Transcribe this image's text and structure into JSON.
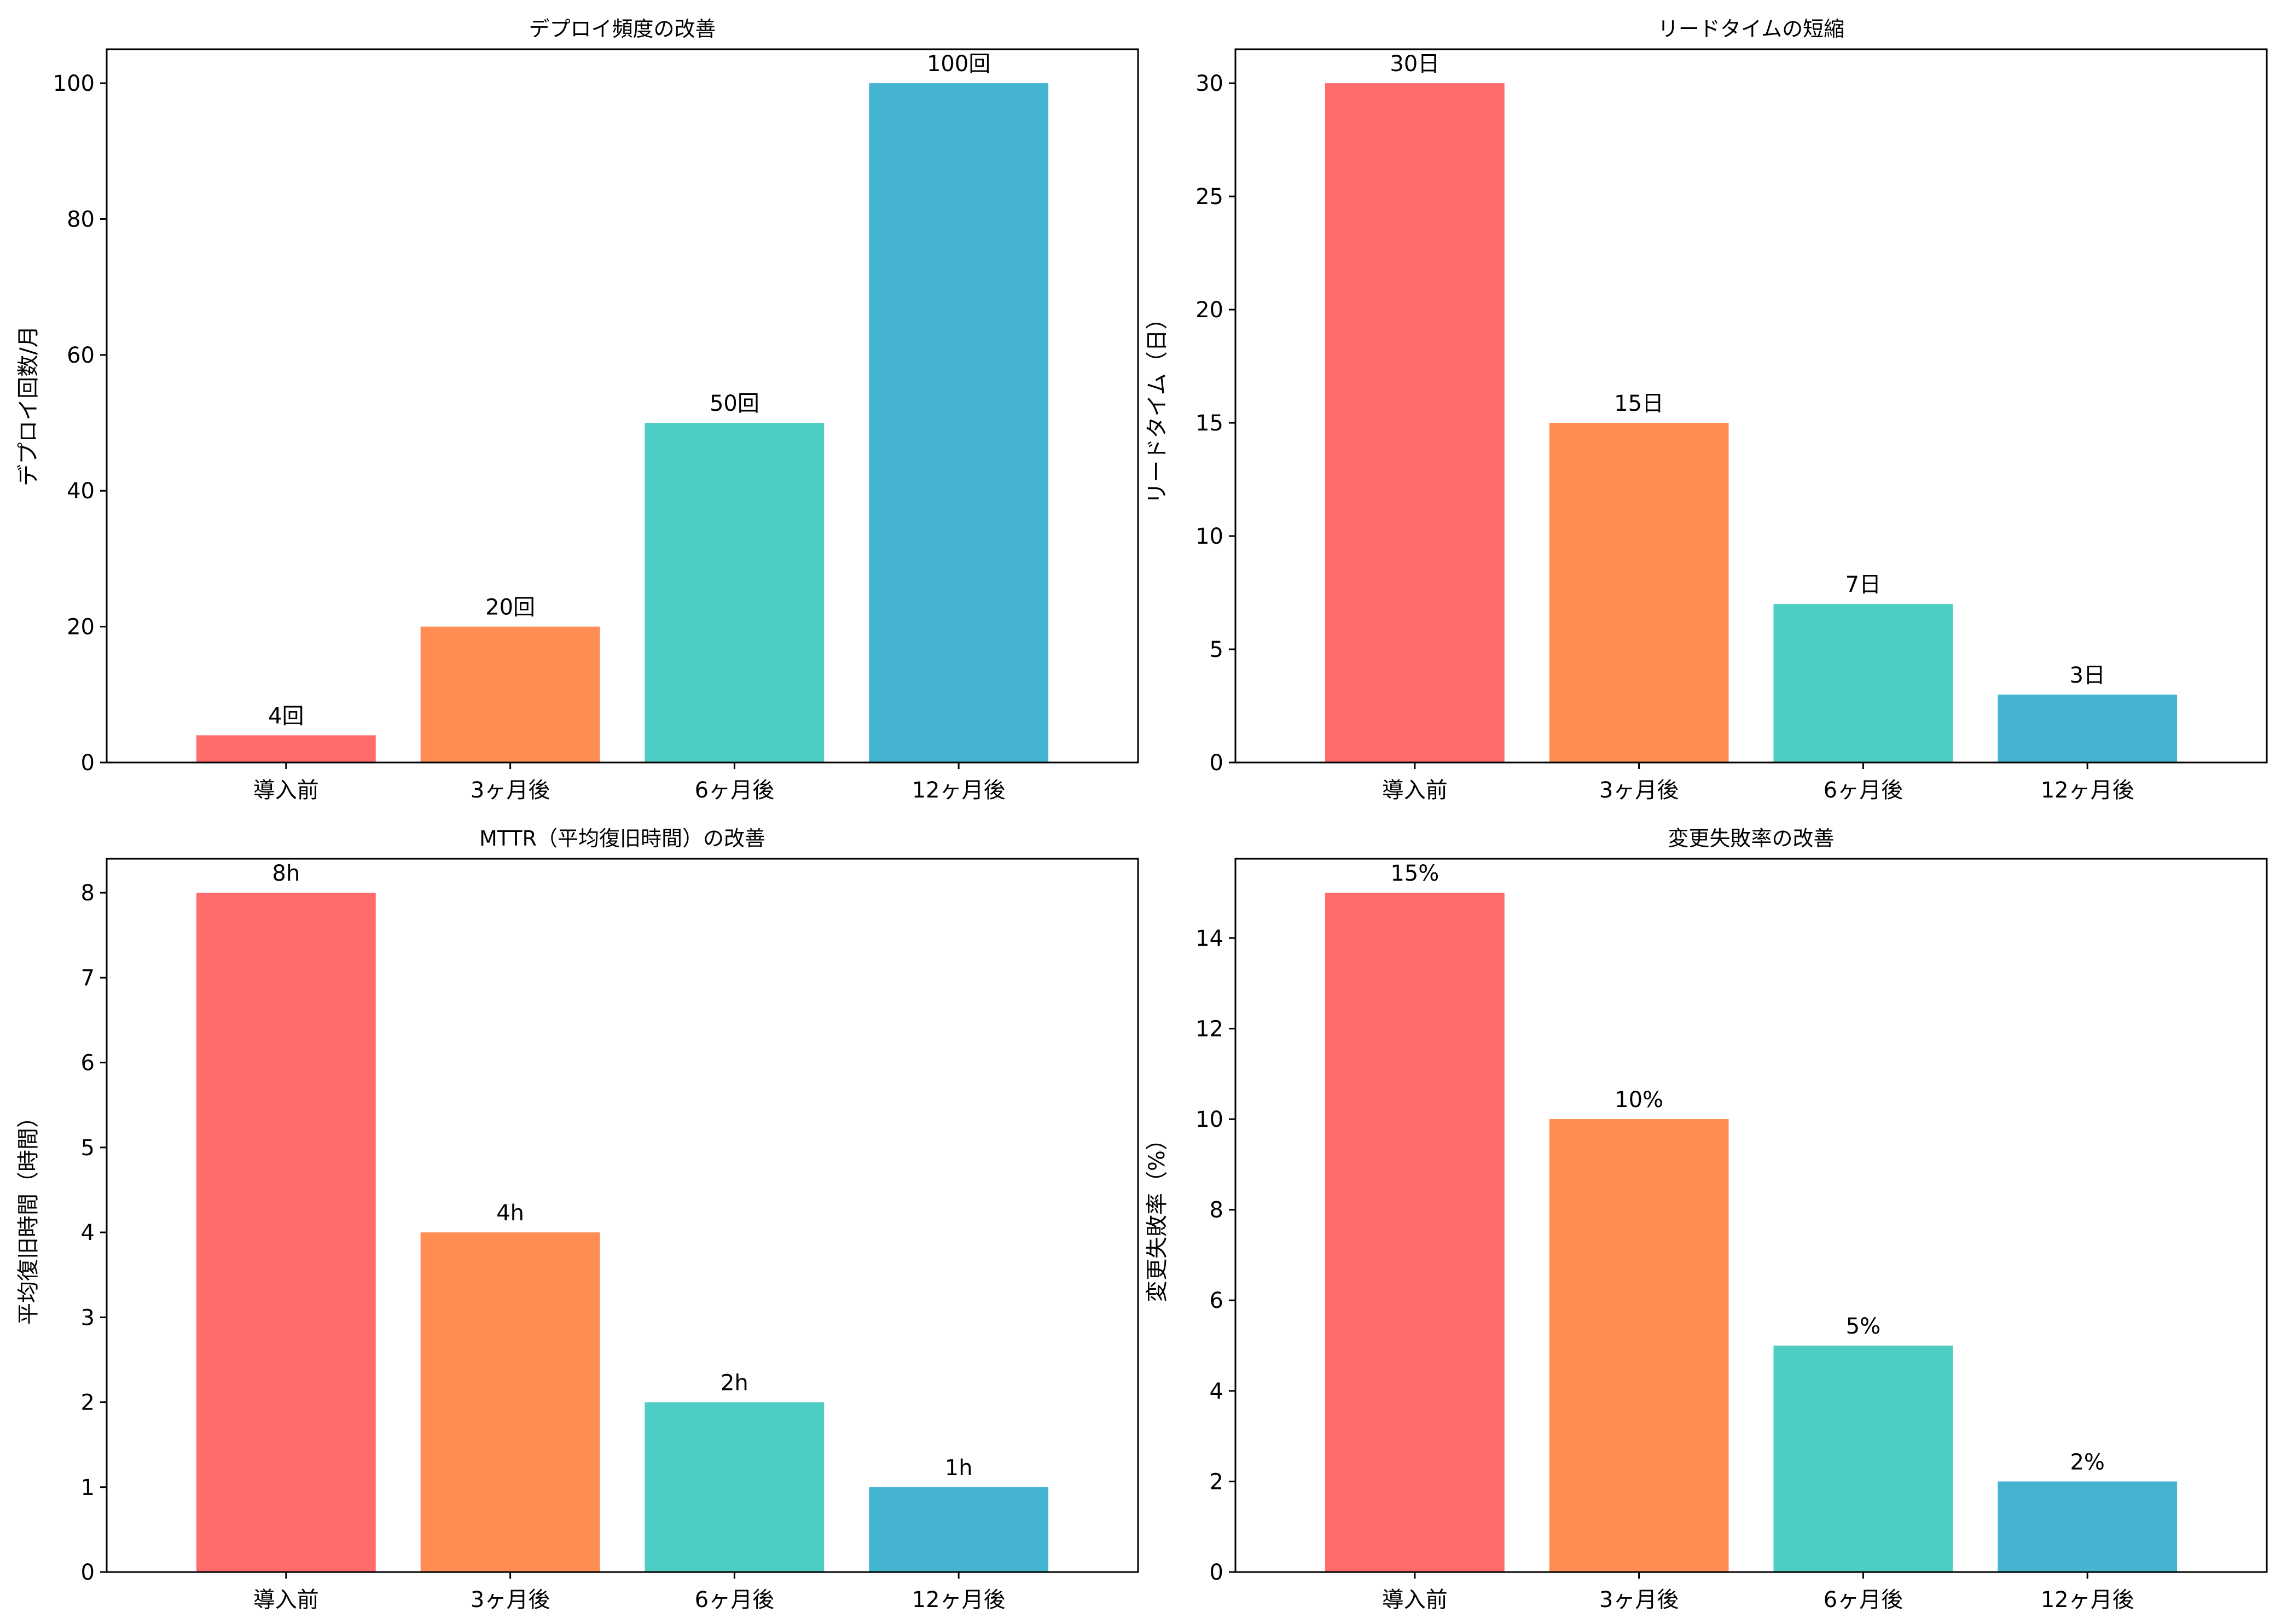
{
  "chart_data": [
    {
      "type": "bar",
      "title": "デプロイ頻度の改善",
      "xlabel": "",
      "ylabel": "デプロイ回数/月",
      "categories": [
        "導入前",
        "3ヶ月後",
        "6ヶ月後",
        "12ヶ月後"
      ],
      "values": [
        4,
        20,
        50,
        100
      ],
      "data_labels": [
        "4回",
        "20回",
        "50回",
        "100回"
      ],
      "ylim": [
        0,
        105
      ],
      "yticks": [
        0,
        20,
        40,
        60,
        80,
        100
      ],
      "colors": [
        "#ff6b6b",
        "#ff8c52",
        "#4ecdc4",
        "#45b4d1"
      ]
    },
    {
      "type": "bar",
      "title": "リードタイムの短縮",
      "xlabel": "",
      "ylabel": "リードタイム（日）",
      "categories": [
        "導入前",
        "3ヶ月後",
        "6ヶ月後",
        "12ヶ月後"
      ],
      "values": [
        30,
        15,
        7,
        3
      ],
      "data_labels": [
        "30日",
        "15日",
        "7日",
        "3日"
      ],
      "ylim": [
        0,
        31.5
      ],
      "yticks": [
        0,
        5,
        10,
        15,
        20,
        25,
        30
      ],
      "colors": [
        "#ff6b6b",
        "#ff8c52",
        "#4ecdc4",
        "#45b4d1"
      ]
    },
    {
      "type": "bar",
      "title": "MTTR（平均復旧時間）の改善",
      "xlabel": "",
      "ylabel": "平均復旧時間（時間）",
      "categories": [
        "導入前",
        "3ヶ月後",
        "6ヶ月後",
        "12ヶ月後"
      ],
      "values": [
        8,
        4,
        2,
        1
      ],
      "data_labels": [
        "8h",
        "4h",
        "2h",
        "1h"
      ],
      "ylim": [
        0,
        8.4
      ],
      "yticks": [
        0,
        1,
        2,
        3,
        4,
        5,
        6,
        7,
        8
      ],
      "colors": [
        "#ff6b6b",
        "#ff8c52",
        "#4ecdc4",
        "#45b4d1"
      ]
    },
    {
      "type": "bar",
      "title": "変更失敗率の改善",
      "xlabel": "",
      "ylabel": "変更失敗率（%）",
      "categories": [
        "導入前",
        "3ヶ月後",
        "6ヶ月後",
        "12ヶ月後"
      ],
      "values": [
        15,
        10,
        5,
        2
      ],
      "data_labels": [
        "15%",
        "10%",
        "5%",
        "2%"
      ],
      "ylim": [
        0,
        15.75
      ],
      "yticks": [
        0,
        2,
        4,
        6,
        8,
        10,
        12,
        14
      ],
      "colors": [
        "#ff6b6b",
        "#ff8c52",
        "#4ecdc4",
        "#45b4d1"
      ]
    }
  ]
}
